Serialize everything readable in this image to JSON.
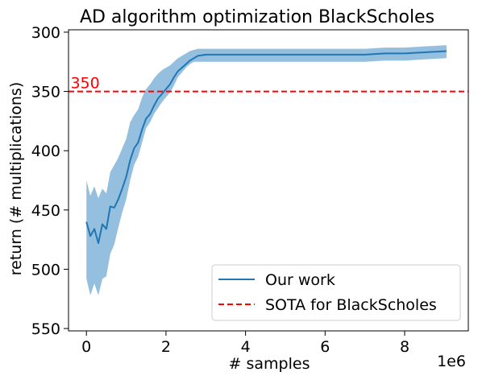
{
  "chart_data": {
    "type": "line",
    "title": "AD algorithm optimization BlackScholes",
    "xlabel": "# samples",
    "ylabel": "return (# multiplications)",
    "x_offset_label": "1e6",
    "xlim": [
      -0.45,
      9.6
    ],
    "ylim": [
      552,
      298
    ],
    "y_inverted": true,
    "x_ticks": [
      0,
      2,
      4,
      6,
      8
    ],
    "x_tick_labels": [
      "0",
      "2",
      "4",
      "6",
      "8"
    ],
    "y_ticks": [
      300,
      350,
      400,
      450,
      500,
      550
    ],
    "y_tick_labels": [
      "300",
      "350",
      "400",
      "450",
      "500",
      "550"
    ],
    "grid": false,
    "legend_position": "lower-right",
    "series": [
      {
        "name": "Our work",
        "color": "#1f77b4",
        "band_color": "#8fbcdc",
        "x": [
          0,
          0.1,
          0.2,
          0.3,
          0.4,
          0.5,
          0.6,
          0.7,
          0.8,
          0.9,
          1.0,
          1.1,
          1.2,
          1.3,
          1.4,
          1.5,
          1.6,
          1.7,
          1.8,
          1.9,
          2.0,
          2.1,
          2.2,
          2.3,
          2.4,
          2.5,
          2.6,
          2.7,
          2.8,
          3.0,
          3.5,
          4.0,
          4.5,
          5.0,
          5.5,
          6.0,
          6.5,
          7.0,
          7.5,
          8.0,
          8.5,
          9.05
        ],
        "y": [
          460,
          472,
          466,
          478,
          462,
          466,
          447,
          448,
          441,
          432,
          422,
          408,
          398,
          393,
          382,
          373,
          369,
          362,
          356,
          352,
          348,
          344,
          338,
          333,
          330,
          327,
          324,
          322,
          320,
          319,
          319,
          319,
          319,
          319,
          319,
          319,
          319,
          319,
          318,
          318,
          317,
          316
        ],
        "y_lower": [
          508,
          522,
          512,
          522,
          508,
          506,
          487,
          479,
          465,
          452,
          441,
          425,
          412,
          405,
          393,
          381,
          376,
          369,
          364,
          359,
          355,
          351,
          345,
          338,
          334,
          330,
          327,
          325,
          325,
          325,
          325,
          325,
          325,
          325,
          325,
          325,
          325,
          325,
          324,
          324,
          323,
          322
        ],
        "y_upper": [
          425,
          438,
          430,
          440,
          432,
          436,
          418,
          412,
          406,
          398,
          390,
          376,
          370,
          365,
          355,
          348,
          344,
          339,
          335,
          332,
          330,
          328,
          325,
          322,
          320,
          318,
          316,
          315,
          314,
          314,
          314,
          314,
          314,
          314,
          314,
          314,
          314,
          314,
          313,
          313,
          312,
          311
        ]
      },
      {
        "name": "SOTA for BlackScholes",
        "color": "#ff0000",
        "style": "dashed",
        "y": 350
      }
    ],
    "annotations": [
      {
        "text": "350",
        "x": -0.4,
        "y": 350,
        "color": "#ff0000"
      }
    ]
  }
}
